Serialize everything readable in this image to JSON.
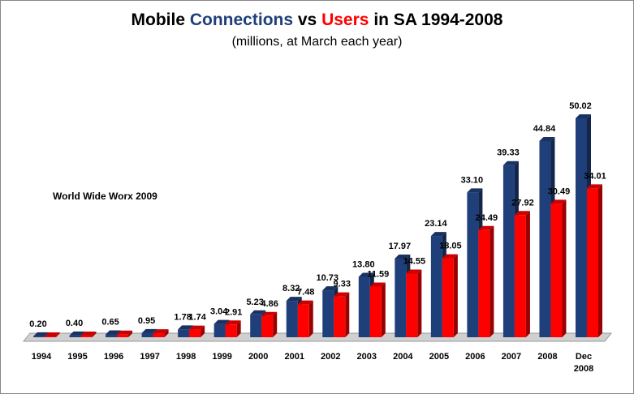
{
  "chart_data": {
    "type": "bar",
    "title": [
      "Mobile",
      "Connections",
      "vs",
      "Users",
      "in SA 1994-2008"
    ],
    "subtitle": "(millions, at March each year)",
    "annotation": "World Wide Worx 2009",
    "categories": [
      "1994",
      "1995",
      "1996",
      "1997",
      "1998",
      "1999",
      "2000",
      "2001",
      "2002",
      "2003",
      "2004",
      "2005",
      "2006",
      "2007",
      "2008",
      "Dec 2008"
    ],
    "series": [
      {
        "name": "Connections",
        "color": "#1f3f7a",
        "values": [
          0.2,
          0.4,
          0.65,
          0.95,
          1.78,
          3.04,
          5.23,
          8.32,
          10.73,
          13.8,
          17.97,
          23.14,
          33.1,
          39.33,
          44.84,
          50.02
        ],
        "value_labels": [
          "0.20",
          "0.40",
          "0.65",
          "0.95",
          "1.78",
          "3.04",
          "5.23",
          "8.32",
          "10.73",
          "13.80",
          "17.97",
          "23.14",
          "33.10",
          "39.33",
          "44.84",
          "50.02"
        ]
      },
      {
        "name": "Users",
        "color": "#ff0000",
        "values": [
          0.18,
          0.36,
          0.6,
          0.9,
          1.74,
          2.91,
          4.86,
          7.48,
          9.33,
          11.59,
          14.55,
          18.05,
          24.49,
          27.92,
          30.49,
          34.01
        ],
        "value_labels": [
          null,
          null,
          null,
          null,
          "1.74",
          "2.91",
          "4.86",
          "7.48",
          "9.33",
          "11.59",
          "14.55",
          "18.05",
          "24.49",
          "27.92",
          "30.49",
          "34.01"
        ]
      }
    ]
  }
}
